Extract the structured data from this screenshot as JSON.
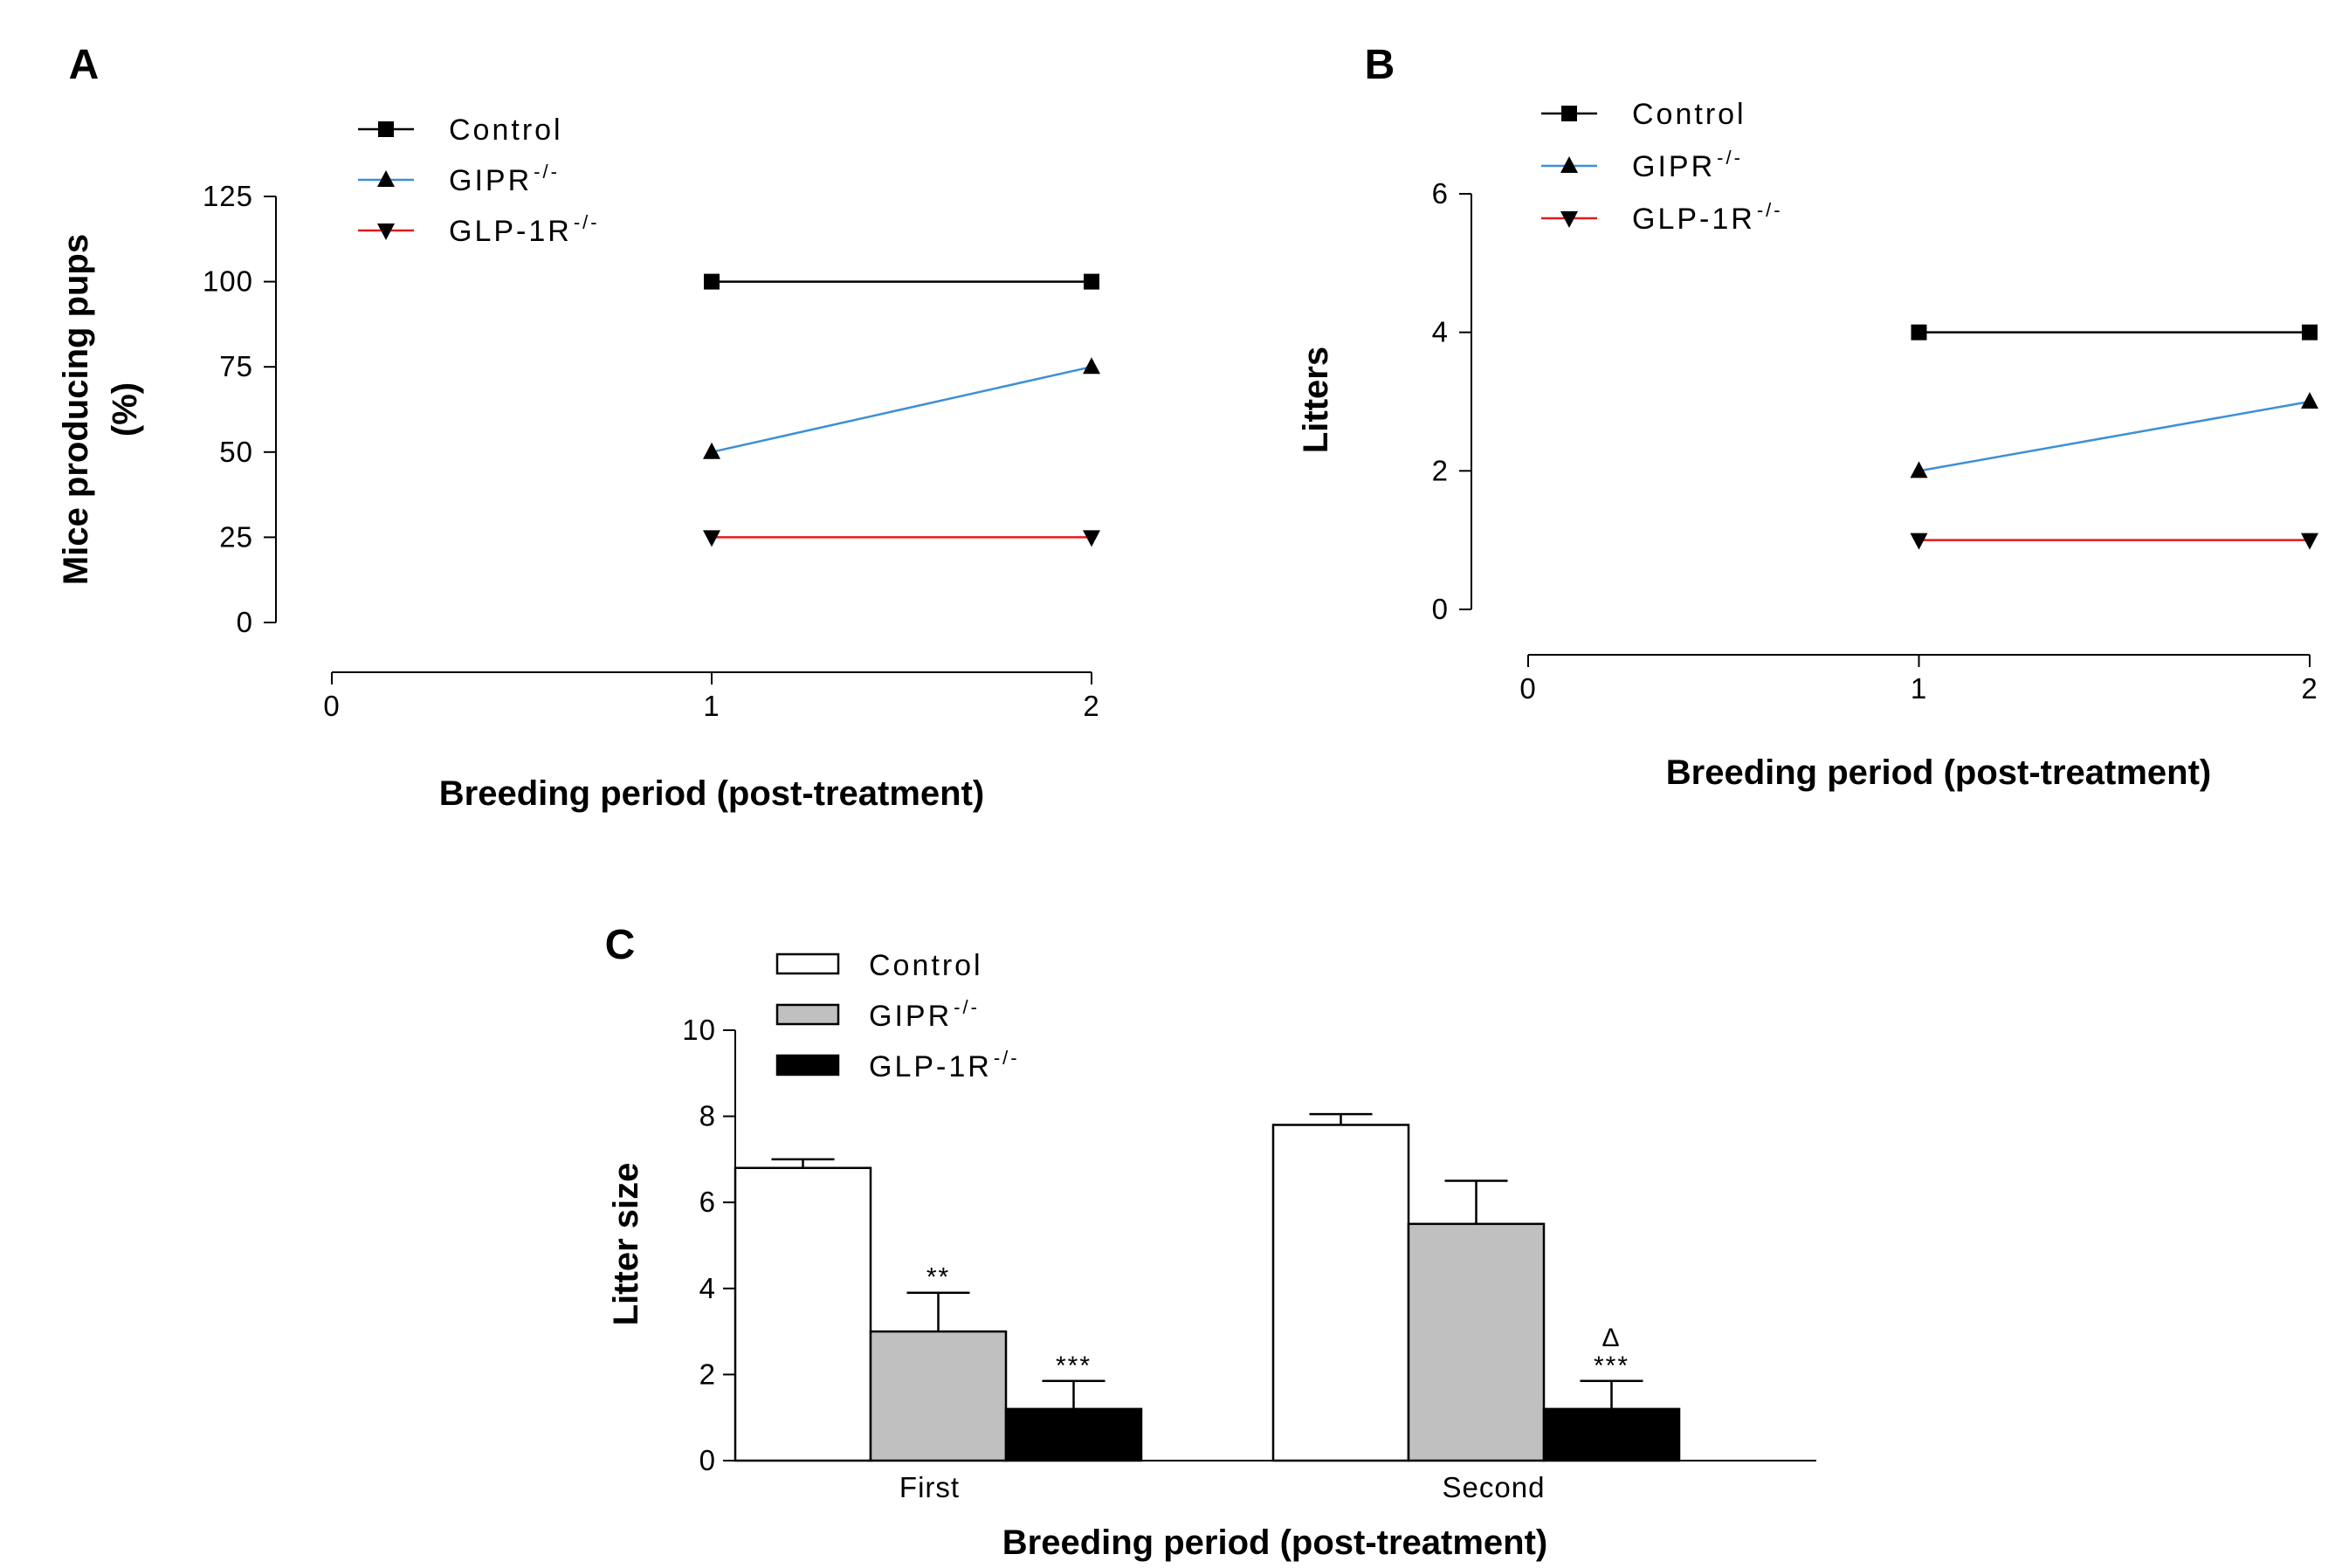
{
  "figure": {
    "panels": [
      "A",
      "B",
      "C"
    ]
  },
  "chart_data": [
    {
      "panel": "A",
      "type": "line",
      "xlabel": "Breeding period (post-treatment)",
      "ylabel_lines": [
        "Mice producing pups",
        "(%)"
      ],
      "xlim": [
        0,
        2
      ],
      "ylim": [
        0,
        125
      ],
      "xticks": [
        "0",
        "1",
        "2"
      ],
      "yticks": [
        "0",
        "25",
        "50",
        "75",
        "100",
        "125"
      ],
      "legend_loc": "top-left",
      "series": [
        {
          "name": "Control",
          "sup": "",
          "color": "#000000",
          "marker": "square",
          "x": [
            1,
            2
          ],
          "y": [
            100,
            100
          ]
        },
        {
          "name": "GIPR",
          "sup": "-/-",
          "color": "#3d8fd6",
          "marker": "triangle-up",
          "x": [
            1,
            2
          ],
          "y": [
            50,
            75
          ]
        },
        {
          "name": "GLP-1R",
          "sup": "-/-",
          "color": "#e41a1c",
          "marker": "triangle-down",
          "x": [
            1,
            2
          ],
          "y": [
            25,
            25
          ]
        }
      ]
    },
    {
      "panel": "B",
      "type": "line",
      "xlabel": "Breeding period (post-treatment)",
      "ylabel": "Litters",
      "xlim": [
        0,
        2
      ],
      "ylim": [
        0,
        6
      ],
      "xticks": [
        "0",
        "1",
        "2"
      ],
      "yticks": [
        "0",
        "2",
        "4",
        "6"
      ],
      "legend_loc": "top-left",
      "series": [
        {
          "name": "Control",
          "sup": "",
          "color": "#000000",
          "marker": "square",
          "x": [
            1,
            2
          ],
          "y": [
            4,
            4
          ]
        },
        {
          "name": "GIPR",
          "sup": "-/-",
          "color": "#3d8fd6",
          "marker": "triangle-up",
          "x": [
            1,
            2
          ],
          "y": [
            2,
            3
          ]
        },
        {
          "name": "GLP-1R",
          "sup": "-/-",
          "color": "#e41a1c",
          "marker": "triangle-down",
          "x": [
            1,
            2
          ],
          "y": [
            1,
            1
          ]
        }
      ]
    },
    {
      "panel": "C",
      "type": "bar",
      "xlabel": "Breeding period (post-treatment)",
      "ylabel": "Litter size",
      "ylim": [
        0,
        10
      ],
      "yticks": [
        "0",
        "2",
        "4",
        "6",
        "8",
        "10"
      ],
      "categories": [
        "First",
        "Second"
      ],
      "legend_loc": "top-left",
      "series": [
        {
          "name": "Control",
          "sup": "",
          "fill": "#ffffff",
          "values": [
            6.8,
            7.8
          ],
          "errors": [
            0.2,
            0.25
          ],
          "annotations": [
            "",
            ""
          ]
        },
        {
          "name": "GIPR",
          "sup": "-/-",
          "fill": "#c0c0c0",
          "values": [
            3.0,
            5.5
          ],
          "errors": [
            0.9,
            1.0
          ],
          "annotations": [
            "**",
            ""
          ]
        },
        {
          "name": "GLP-1R",
          "sup": "-/-",
          "fill": "#000000",
          "values": [
            1.2,
            1.2
          ],
          "errors": [
            0.65,
            0.65
          ],
          "annotations": [
            "***",
            "***"
          ]
        }
      ],
      "extra_annotations": [
        {
          "category": "Second",
          "series": "GLP-1R",
          "text": "Δ"
        }
      ]
    }
  ]
}
